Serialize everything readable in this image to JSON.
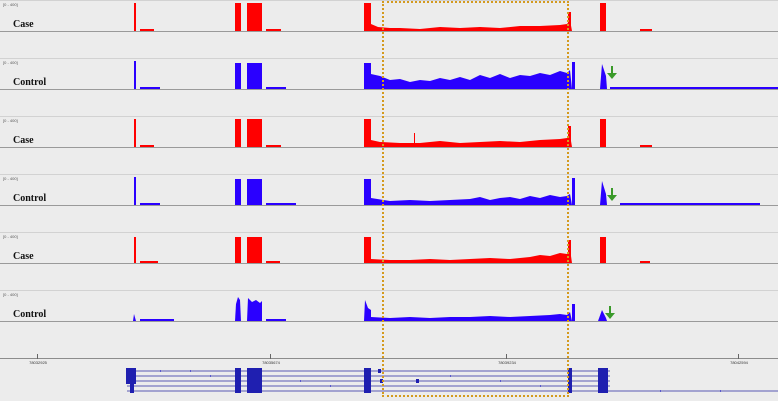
{
  "tracks": [
    {
      "label": "Case",
      "scale": "[0 - 400]",
      "color": "#ff0000"
    },
    {
      "label": "Control",
      "scale": "[0 - 400]",
      "color": "#2a00ff"
    },
    {
      "label": "Case",
      "scale": "[0 - 400]",
      "color": "#ff0000"
    },
    {
      "label": "Control",
      "scale": "[0 - 400]",
      "color": "#2a00ff"
    },
    {
      "label": "Case",
      "scale": "[0 - 400]",
      "color": "#ff0000"
    },
    {
      "label": "Control",
      "scale": "[0 - 400]",
      "color": "#2a00ff"
    }
  ],
  "ruler": {
    "ticks": [
      "78032925",
      "78035674",
      "78039234",
      "78042594"
    ]
  },
  "highlight": {
    "color": "#d49a1e",
    "style": "dotted"
  },
  "markers": {
    "arrow_color": "#3a9a2a",
    "arrow_icon": "down-arrow-icon"
  }
}
